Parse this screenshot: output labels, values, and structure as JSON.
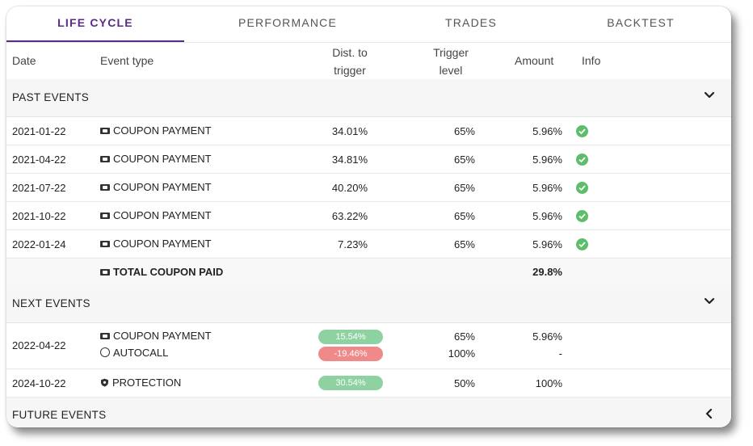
{
  "tabs": [
    {
      "label": "LIFE CYCLE",
      "active": true
    },
    {
      "label": "PERFORMANCE",
      "active": false
    },
    {
      "label": "TRADES",
      "active": false
    },
    {
      "label": "BACKTEST",
      "active": false
    }
  ],
  "columns": {
    "date": "Date",
    "event_type": "Event type",
    "dist_line1": "Dist. to",
    "dist_line2": "trigger",
    "trigger_line1": "Trigger",
    "trigger_line2": "level",
    "amount": "Amount",
    "info": "Info"
  },
  "past_events": {
    "title": "PAST EVENTS",
    "rows": [
      {
        "date": "2021-01-22",
        "event": "COUPON PAYMENT",
        "dist": "34.01%",
        "trigger": "65%",
        "amount": "5.96%"
      },
      {
        "date": "2021-04-22",
        "event": "COUPON PAYMENT",
        "dist": "34.81%",
        "trigger": "65%",
        "amount": "5.96%"
      },
      {
        "date": "2021-07-22",
        "event": "COUPON PAYMENT",
        "dist": "40.20%",
        "trigger": "65%",
        "amount": "5.96%"
      },
      {
        "date": "2021-10-22",
        "event": "COUPON PAYMENT",
        "dist": "63.22%",
        "trigger": "65%",
        "amount": "5.96%"
      },
      {
        "date": "2022-01-24",
        "event": "COUPON PAYMENT",
        "dist": "7.23%",
        "trigger": "65%",
        "amount": "5.96%"
      }
    ],
    "total_label": "TOTAL COUPON PAID",
    "total_amount": "29.8%"
  },
  "next_events": {
    "title": "NEXT EVENTS",
    "row1": {
      "date": "2022-04-22",
      "event_a": "COUPON PAYMENT",
      "event_b": "AUTOCALL",
      "dist_a": "15.54%",
      "dist_b": "-19.46%",
      "trigger_a": "65%",
      "trigger_b": "100%",
      "amount_a": "5.96%",
      "amount_b": "-"
    },
    "row2": {
      "date": "2024-10-22",
      "event": "PROTECTION",
      "dist": "30.54%",
      "trigger": "50%",
      "amount": "100%"
    }
  },
  "future_events": {
    "title": "FUTURE EVENTS"
  },
  "colors": {
    "accent": "#5a2a8a",
    "positive": "#8fd2a1",
    "negative": "#f08a8a",
    "check": "#5cbd6a"
  }
}
